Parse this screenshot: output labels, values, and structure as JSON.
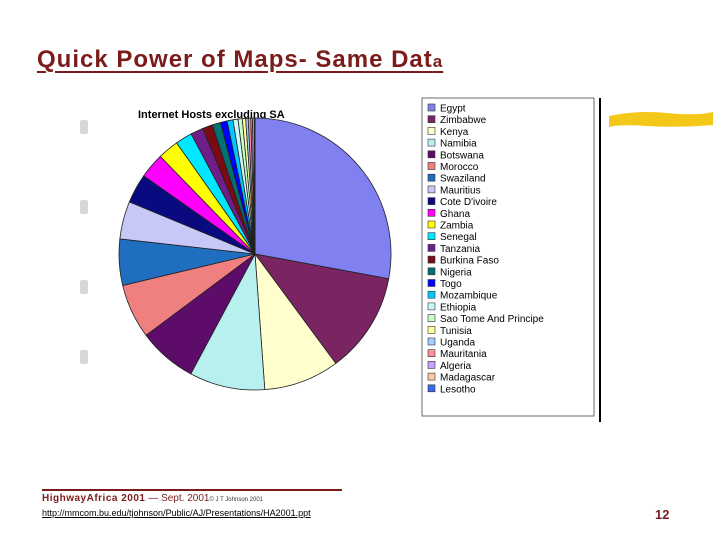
{
  "slide": {
    "title_main": "Quick Power of Maps- Same Dat",
    "title_tail": "a",
    "page_number": "12"
  },
  "footer": {
    "brand": "HighwayAfrica 2001",
    "dash": " — ",
    "date": "Sept. 2001",
    "copyright": "© J T Johnson 2001",
    "url": "http://mmcom.bu.edu/tjohnson/Public/AJ/Presentations/HA2001.ppt"
  },
  "colors": {
    "title": "#7a1c1c",
    "marker": "#f2c200"
  },
  "chart_data": {
    "type": "pie",
    "title": "Internet Hosts excluding SA",
    "legend_position": "right",
    "categories": [
      "Egypt",
      "Zimbabwe",
      "Kenya",
      "Namibia",
      "Botswana",
      "Morocco",
      "Swaziland",
      "Mauritius",
      "Cote D'ivoire",
      "Ghana",
      "Zambia",
      "Senegal",
      "Tanzania",
      "Burkina Faso",
      "Nigeria",
      "Togo",
      "Mozambique",
      "Ethiopia",
      "Sao Tome And Principe",
      "Tunisia",
      "Uganda",
      "Mauritania",
      "Algeria",
      "Madagascar",
      "Lesotho"
    ],
    "values": [
      28.0,
      12.0,
      9.0,
      9.0,
      7.0,
      6.5,
      5.5,
      4.5,
      3.5,
      3.0,
      2.5,
      2.0,
      1.5,
      1.2,
      1.0,
      0.8,
      0.7,
      0.6,
      0.5,
      0.4,
      0.3,
      0.3,
      0.2,
      0.2,
      0.1
    ],
    "colors": [
      "#8080f0",
      "#7a2462",
      "#fffecc",
      "#b8f0f0",
      "#5e0c6a",
      "#f08080",
      "#1f6ec0",
      "#c8c8f8",
      "#0a0a80",
      "#ff00ff",
      "#ffff00",
      "#00e8ff",
      "#6e1e88",
      "#7a0a14",
      "#007070",
      "#0000ff",
      "#00c8ff",
      "#c8f8f8",
      "#c8ffc8",
      "#ffffa0",
      "#a0d0ff",
      "#ff90a0",
      "#c8a0ff",
      "#ffc8a0",
      "#3a68f0"
    ]
  }
}
